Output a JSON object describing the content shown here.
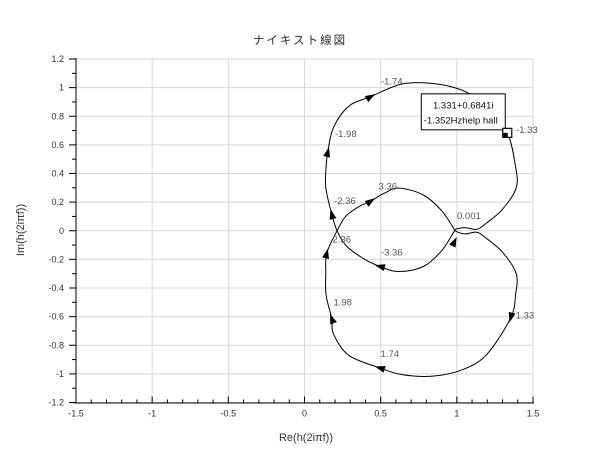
{
  "window": {
    "title": "ナイキスト線図"
  },
  "colors": {
    "background": "#ffffff",
    "grid": "#d9d9d9",
    "axis": "#000000",
    "curve": "#000000",
    "tick_text": "#333333",
    "annotation_text": "#555555",
    "tooltip_bg": "#ffffff",
    "tooltip_border": "#000000"
  },
  "chart_data": {
    "type": "line",
    "title": "ナイキスト線図",
    "xlabel": "Re(h(2iπf))",
    "ylabel": "Im(h(2iπf))",
    "xlim": [
      -1.5,
      1.5
    ],
    "ylim": [
      -1.2,
      1.2
    ],
    "grid": true,
    "x_major_ticks": [
      -1.5,
      -1,
      -0.5,
      0,
      0.5,
      1,
      1.5
    ],
    "x_tick_labels": [
      "-1.5",
      "-1",
      "-0.5",
      "0",
      "0.5",
      "1",
      "1.5"
    ],
    "x_minor_step": 0.1,
    "y_major_ticks": [
      1.2,
      1,
      0.8,
      0.6,
      0.4,
      0.2,
      0,
      -0.2,
      -0.4,
      -0.6,
      -0.8,
      -1,
      -1.2
    ],
    "y_tick_labels": [
      "1.2",
      "1",
      "0.8",
      "0.6",
      "0.4",
      "0.2",
      "0",
      "-0.2",
      "-0.4",
      "-0.6",
      "-0.8",
      "-1",
      "-1.2"
    ],
    "y_minor_step": 0.1,
    "curve": {
      "name": "nyquist-trace",
      "points": [
        [
          0.987,
          0.004
        ],
        [
          0.9,
          -0.14
        ],
        [
          0.78,
          -0.25
        ],
        [
          0.62,
          -0.285
        ],
        [
          0.494,
          -0.249
        ],
        [
          0.38,
          -0.19
        ],
        [
          0.27,
          -0.1
        ],
        [
          0.212,
          0.004
        ],
        [
          0.179,
          0.116
        ],
        [
          0.14,
          0.3
        ],
        [
          0.142,
          0.45
        ],
        [
          0.153,
          0.551
        ],
        [
          0.19,
          0.72
        ],
        [
          0.29,
          0.87
        ],
        [
          0.435,
          0.937
        ],
        [
          0.64,
          1.025
        ],
        [
          0.85,
          1.028
        ],
        [
          1.05,
          0.975
        ],
        [
          1.2,
          0.86
        ],
        [
          1.331,
          0.684
        ],
        [
          1.385,
          0.45
        ],
        [
          1.39,
          0.3
        ],
        [
          1.3,
          0.15
        ],
        [
          1.19,
          0.05
        ],
        [
          1.131,
          0.01
        ],
        [
          1.05,
          0.022
        ],
        [
          0.987,
          0.004
        ],
        [
          1.05,
          -0.022
        ],
        [
          1.131,
          -0.01
        ],
        [
          1.19,
          -0.05
        ],
        [
          1.3,
          -0.15
        ],
        [
          1.39,
          -0.3
        ],
        [
          1.385,
          -0.45
        ],
        [
          1.354,
          -0.607
        ],
        [
          1.2,
          -0.86
        ],
        [
          1.05,
          -0.965
        ],
        [
          0.85,
          -1.015
        ],
        [
          0.64,
          -1.005
        ],
        [
          0.494,
          -0.958
        ],
        [
          0.29,
          -0.87
        ],
        [
          0.19,
          -0.72
        ],
        [
          0.179,
          -0.614
        ],
        [
          0.142,
          -0.45
        ],
        [
          0.14,
          -0.3
        ],
        [
          0.146,
          -0.158
        ],
        [
          0.212,
          -0.004
        ],
        [
          0.27,
          0.1
        ],
        [
          0.36,
          0.17
        ],
        [
          0.435,
          0.207
        ],
        [
          0.52,
          0.26
        ],
        [
          0.62,
          0.298
        ],
        [
          0.78,
          0.25
        ],
        [
          0.9,
          0.14
        ],
        [
          0.987,
          0.004
        ]
      ]
    },
    "annotations": [
      {
        "label": "-1.74",
        "label_re": 0.573,
        "label_im": 1.042,
        "arrow_re": 0.435,
        "arrow_im": 0.937,
        "arrow_angle": -30
      },
      {
        "label": "-1.98",
        "label_re": 0.271,
        "label_im": 0.677,
        "arrow_re": 0.153,
        "arrow_im": 0.551,
        "arrow_angle": -76
      },
      {
        "label": "-2.36",
        "label_re": 0.265,
        "label_im": 0.207,
        "arrow_re": 0.179,
        "arrow_im": 0.116,
        "arrow_angle": -104
      },
      {
        "label": "3.36",
        "label_re": 0.547,
        "label_im": 0.309,
        "arrow_re": 0.435,
        "arrow_im": 0.207,
        "arrow_angle": -34
      },
      {
        "label": "-3.36",
        "label_re": 0.573,
        "label_im": -0.151,
        "arrow_re": 0.494,
        "arrow_im": -0.249,
        "arrow_angle": -166
      },
      {
        "label": "2.36",
        "label_re": 0.245,
        "label_im": -0.06,
        "arrow_re": 0.146,
        "arrow_im": -0.158,
        "arrow_angle": -77
      },
      {
        "label": "1.98",
        "label_re": 0.251,
        "label_im": -0.502,
        "arrow_re": 0.179,
        "arrow_im": -0.614,
        "arrow_angle": -111
      },
      {
        "label": "1.74",
        "label_re": 0.56,
        "label_im": -0.86,
        "arrow_re": 0.494,
        "arrow_im": -0.958,
        "arrow_angle": -163
      },
      {
        "label": "1.33",
        "label_re": 1.447,
        "label_im": -0.593,
        "arrow_re": 1.354,
        "arrow_im": -0.607,
        "arrow_angle": 105
      },
      {
        "label": "0.001",
        "label_re": 1.079,
        "label_im": 0.102,
        "arrow_re": 0.985,
        "arrow_im": -0.075,
        "arrow_angle": -65
      },
      {
        "label": "-1.33",
        "label_re": 1.46,
        "label_im": 0.705,
        "arrow_re": null,
        "arrow_im": null,
        "arrow_angle": null
      }
    ],
    "cursor": {
      "re": 1.331,
      "im": 0.6841,
      "tooltip_line1": "1.331+0.6841i",
      "tooltip_line2": "-1.352Hzhelp hall"
    }
  }
}
